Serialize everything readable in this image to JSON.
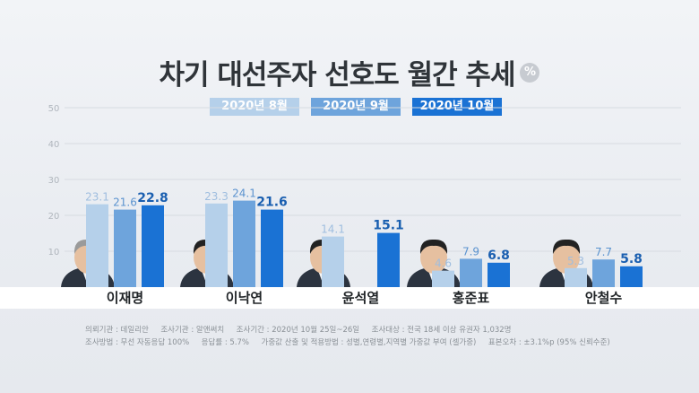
{
  "title": "차기 대선주자 선호도 월간 추세",
  "unit": "%",
  "legend": [
    "2020년 8월",
    "2020년 9월",
    "2020년 10월"
  ],
  "colors": {
    "aug": "#b5d0ea",
    "sep": "#6ea4dc",
    "oct": "#1a72d4",
    "aug_label": "#9fbedf",
    "sep_label": "#5b93cf",
    "oct_label": "#1a5fb0",
    "axis_text": "#b0b6bd",
    "grid": "#d7dbe1"
  },
  "chart_data": {
    "type": "bar",
    "title": "차기 대선주자 선호도 월간 추세",
    "unit": "%",
    "categories": [
      "이재명",
      "이낙연",
      "윤석열",
      "홍준표",
      "안철수"
    ],
    "series": [
      {
        "name": "2020년 8월",
        "values": [
          23.1,
          23.3,
          14.1,
          4.6,
          5.3
        ]
      },
      {
        "name": "2020년 9월",
        "values": [
          21.6,
          24.1,
          null,
          7.9,
          7.7
        ]
      },
      {
        "name": "2020년 10월",
        "values": [
          22.8,
          21.6,
          15.1,
          6.8,
          5.8
        ]
      }
    ],
    "ylim": [
      0,
      50
    ],
    "yticks": [
      10,
      20,
      30,
      40,
      50
    ],
    "grid": true,
    "legend_position": "top"
  },
  "footnote": {
    "line1": "의뢰기관 : 데일리안     조사기관 : 알앤써치     조사기간 : 2020년 10월 25일~26일     조사대상 : 전국 18세 이상 유권자 1,032명",
    "line2": "조사방법 : 무선 자동응답 100%     응답률 : 5.7%     가중값 산출 및 적용방법 : 성별,연령별,지역별 가중값 부여 (셀가중)     표본오차 : ±3.1%p (95% 신뢰수준)"
  }
}
